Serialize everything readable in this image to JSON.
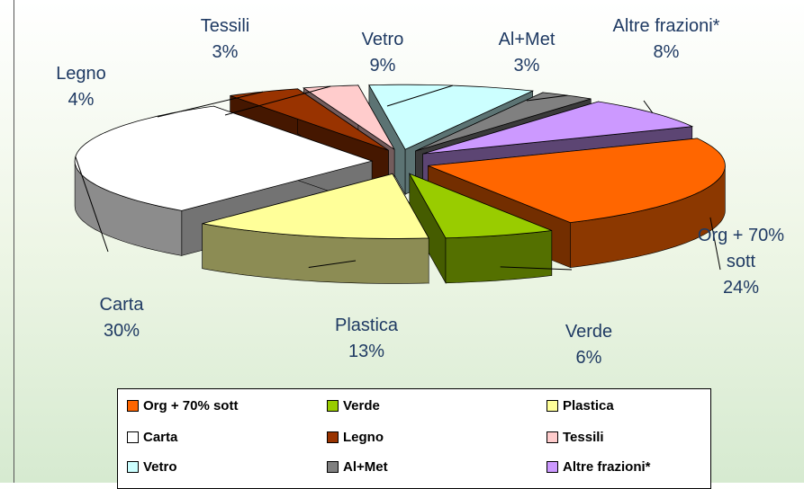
{
  "chart_data": {
    "type": "pie3d",
    "categories": [
      "Org + 70% sott",
      "Verde",
      "Plastica",
      "Carta",
      "Legno",
      "Tessili",
      "Vetro",
      "Al+Met",
      "Altre frazioni*"
    ],
    "values": [
      24,
      6,
      13,
      30,
      4,
      3,
      9,
      3,
      8
    ],
    "value_labels": [
      "24%",
      "6%",
      "13%",
      "30%",
      "4%",
      "3%",
      "9%",
      "3%",
      "8%"
    ],
    "colors": [
      "#ff6600",
      "#99cc00",
      "#ffff99",
      "#ffffff",
      "#993300",
      "#ffcccc",
      "#ccffff",
      "#808080",
      "#cc99ff"
    ],
    "legend": "bottom"
  }
}
